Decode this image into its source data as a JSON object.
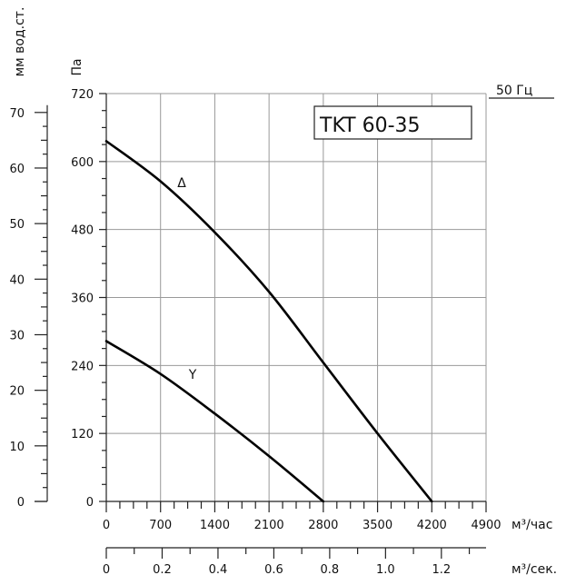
{
  "chart_data": {
    "type": "line",
    "title": "TKT 60-35",
    "frequency_label": "50 Гц",
    "x_axis_flow_hour": {
      "label": "м³/час",
      "range": [
        0,
        4900
      ],
      "ticks": [
        "0",
        "700",
        "1400",
        "2100",
        "2800",
        "3500",
        "4200",
        "4900"
      ]
    },
    "x_axis_flow_sec": {
      "label": "м³/сек.",
      "range": [
        0,
        1.36
      ],
      "ticks": [
        "0",
        "0.2",
        "0.4",
        "0.6",
        "0.8",
        "1.0",
        "1.2"
      ]
    },
    "y_axis_pa": {
      "label": "Па",
      "range": [
        0,
        720
      ],
      "ticks": [
        "0",
        "120",
        "240",
        "360",
        "480",
        "600",
        "720"
      ]
    },
    "y_axis_mm": {
      "label": "мм вод.ст.",
      "range": [
        0,
        73.4
      ],
      "ticks": [
        "0",
        "10",
        "20",
        "30",
        "40",
        "50",
        "60",
        "70"
      ]
    },
    "grid": true,
    "series": [
      {
        "name": "Δ",
        "x": [
          0,
          700,
          1400,
          2100,
          2800,
          3500,
          4200
        ],
        "y": [
          636,
          565,
          475,
          370,
          245,
          120,
          0
        ]
      },
      {
        "name": "Y",
        "x": [
          0,
          700,
          1400,
          2100,
          2800
        ],
        "y": [
          283,
          225,
          155,
          80,
          0
        ]
      }
    ]
  }
}
